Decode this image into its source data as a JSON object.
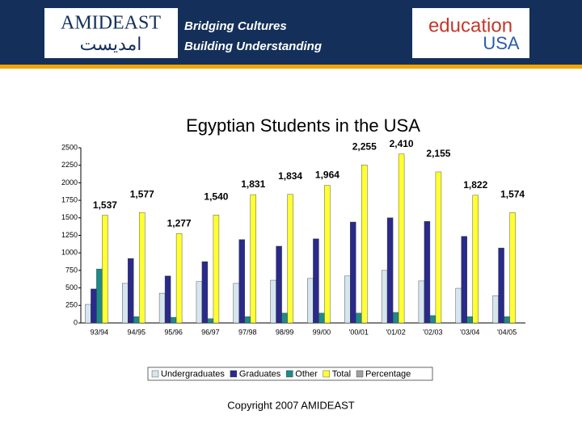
{
  "header": {
    "org": "AMIDEAST",
    "arabic": "امديست",
    "tagline_1": "Bridging Cultures",
    "tagline_2": "Building Understanding",
    "partner_1": "education",
    "partner_2": "USA"
  },
  "chart_data": {
    "type": "bar",
    "title": "Egyptian Students in the USA",
    "categories": [
      "93/94",
      "94/95",
      "95/96",
      "96/97",
      "97/98",
      "98/99",
      "99/00",
      "'00/01",
      "'01/02",
      "'02/03",
      "'03/04",
      "'04/05"
    ],
    "series": [
      {
        "name": "Undergraduates",
        "color": "#d6e6ee",
        "values": [
          265,
          565,
          425,
          590,
          565,
          610,
          635,
          670,
          750,
          600,
          495,
          390
        ]
      },
      {
        "name": "Graduates",
        "color": "#2a2a8a",
        "values": [
          485,
          920,
          670,
          875,
          1190,
          1095,
          1200,
          1440,
          1500,
          1450,
          1235,
          1070
        ]
      },
      {
        "name": "Other",
        "color": "#1f8a8a",
        "values": [
          770,
          90,
          80,
          60,
          90,
          140,
          140,
          140,
          150,
          105,
          90,
          90
        ]
      },
      {
        "name": "Total",
        "color": "#ffff33",
        "values": [
          1537,
          1577,
          1277,
          1540,
          1831,
          1834,
          1964,
          2255,
          2410,
          2155,
          1822,
          1574
        ],
        "value_labels": [
          "1,537",
          "1,577",
          "1,277",
          "1,540",
          "1,831",
          "1,834",
          "1,964",
          "2,255",
          "2,410",
          "2,155",
          "1,822",
          "1,574"
        ]
      },
      {
        "name": "Percentage",
        "color": "#a0a0a0",
        "values": [
          0,
          0,
          0,
          0,
          0,
          0,
          0,
          0,
          0,
          0,
          0,
          0
        ]
      }
    ],
    "ylim": [
      0,
      2500
    ],
    "yticks": [
      0,
      250,
      500,
      750,
      1000,
      1250,
      1500,
      1750,
      2000,
      2250,
      2500
    ],
    "legend": "bottom",
    "footer": "Copyright 2007 AMIDEAST"
  }
}
